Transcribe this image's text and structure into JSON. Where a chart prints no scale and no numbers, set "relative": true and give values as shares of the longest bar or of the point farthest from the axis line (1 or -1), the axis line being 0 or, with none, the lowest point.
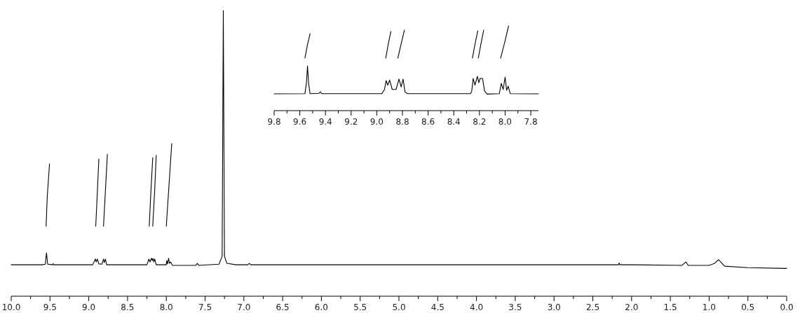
{
  "chart_data": [
    {
      "type": "line",
      "relative": true,
      "tick_labels": "x",
      "xlim": [
        10.0,
        0.0
      ],
      "xticks": [
        {
          "value": 10.0,
          "label": "10.0"
        },
        {
          "value": 9.75,
          "label": null
        },
        9.5,
        {
          "value": 9.25,
          "label": null
        },
        {
          "value": 9.0,
          "label": "9.0"
        },
        {
          "value": 8.75,
          "label": null
        },
        8.5,
        {
          "value": 8.25,
          "label": null
        },
        {
          "value": 8.0,
          "label": "8.0"
        },
        {
          "value": 7.75,
          "label": null
        },
        7.5,
        {
          "value": 7.25,
          "label": null
        },
        {
          "value": 7.0,
          "label": "7.0"
        },
        {
          "value": 6.75,
          "label": null
        },
        6.5,
        {
          "value": 6.25,
          "label": null
        },
        {
          "value": 6.0,
          "label": "6.0"
        },
        {
          "value": 5.75,
          "label": null
        },
        5.5,
        {
          "value": 5.25,
          "label": null
        },
        {
          "value": 5.0,
          "label": "5.0"
        },
        {
          "value": 4.75,
          "label": null
        },
        4.5,
        {
          "value": 4.25,
          "label": null
        },
        {
          "value": 4.0,
          "label": "4.0"
        },
        {
          "value": 3.75,
          "label": null
        },
        3.5,
        {
          "value": 3.25,
          "label": null
        },
        {
          "value": 3.0,
          "label": "3.0"
        },
        {
          "value": 2.75,
          "label": null
        },
        2.5,
        {
          "value": 2.25,
          "label": null
        },
        {
          "value": 2.0,
          "label": "2.0"
        },
        {
          "value": 1.75,
          "label": null
        },
        1.5,
        {
          "value": 1.25,
          "label": null
        },
        {
          "value": 1.0,
          "label": "1.0"
        },
        {
          "value": 0.75,
          "label": null
        },
        0.5,
        {
          "value": 0.25,
          "label": null
        },
        {
          "value": 0.0,
          "label": "0.0"
        }
      ],
      "line_style": "solid",
      "marker": "none",
      "series": [
        {
          "color": "#000000",
          "x": [
            10.0,
            9.6,
            9.56,
            9.545,
            9.53,
            9.47,
            9.46,
            9.45,
            9.0,
            8.95,
            8.915,
            8.905,
            8.89,
            8.87,
            8.83,
            8.81,
            8.8,
            8.785,
            8.77,
            8.25,
            8.225,
            8.21,
            8.19,
            8.18,
            8.17,
            8.16,
            8.15,
            8.13,
            8.0,
            7.995,
            7.985,
            7.97,
            7.96,
            7.945,
            7.92,
            7.62,
            7.6,
            7.58,
            7.32,
            7.28,
            7.265,
            7.25,
            7.22,
            7.1,
            6.95,
            6.93,
            6.91,
            6.0,
            4.0,
            3.0,
            2.17,
            2.16,
            2.15,
            2.0,
            1.35,
            1.3,
            1.27,
            1.0,
            0.93,
            0.88,
            0.85,
            0.8,
            0.5,
            0.0
          ],
          "values": [
            0.11,
            0.11,
            0.112,
            0.152,
            0.112,
            0.11,
            0.114,
            0.11,
            0.11,
            0.11,
            0.13,
            0.12,
            0.13,
            0.113,
            0.112,
            0.13,
            0.118,
            0.13,
            0.11,
            0.11,
            0.13,
            0.12,
            0.133,
            0.125,
            0.132,
            0.12,
            0.13,
            0.11,
            0.11,
            0.125,
            0.113,
            0.133,
            0.115,
            0.12,
            0.108,
            0.108,
            0.115,
            0.108,
            0.112,
            0.14,
            1.0,
            0.14,
            0.115,
            0.11,
            0.11,
            0.115,
            0.11,
            0.11,
            0.11,
            0.11,
            0.11,
            0.116,
            0.11,
            0.11,
            0.108,
            0.12,
            0.108,
            0.108,
            0.115,
            0.128,
            0.12,
            0.105,
            0.1,
            0.097
          ]
        },
        {
          "color": "#000000",
          "x": [
            9.55,
            9.535,
            9.506
          ],
          "values": [
            0.245,
            0.35,
            0.463
          ]
        },
        {
          "color": "#000000",
          "x": [
            8.91,
            8.89,
            8.87
          ],
          "values": [
            0.245,
            0.36,
            0.48
          ]
        },
        {
          "color": "#000000",
          "x": [
            8.81,
            8.785,
            8.76
          ],
          "values": [
            0.245,
            0.37,
            0.497
          ]
        },
        {
          "color": "#000000",
          "x": [
            8.22,
            8.2,
            8.175
          ],
          "values": [
            0.245,
            0.36,
            0.485
          ]
        },
        {
          "color": "#000000",
          "x": [
            8.175,
            8.15,
            8.13
          ],
          "values": [
            0.245,
            0.37,
            0.493
          ]
        },
        {
          "color": "#000000",
          "x": [
            8.0,
            7.965,
            7.93
          ],
          "values": [
            0.245,
            0.39,
            0.534
          ]
        }
      ]
    },
    {
      "type": "line",
      "relative": true,
      "tick_labels": "x",
      "xlim": [
        9.8,
        7.74
      ],
      "xticks": [
        9.8,
        {
          "value": 9.7,
          "label": null
        },
        9.6,
        {
          "value": 9.5,
          "label": null
        },
        9.4,
        {
          "value": 9.3,
          "label": null
        },
        9.2,
        {
          "value": 9.1,
          "label": null
        },
        {
          "value": 9.0,
          "label": "9.0"
        },
        {
          "value": 8.9,
          "label": null
        },
        8.8,
        {
          "value": 8.7,
          "label": null
        },
        8.6,
        {
          "value": 8.5,
          "label": null
        },
        8.4,
        {
          "value": 8.3,
          "label": null
        },
        8.2,
        {
          "value": 8.1,
          "label": null
        },
        {
          "value": 8.0,
          "label": "8.0"
        },
        {
          "value": 7.9,
          "label": null
        },
        7.8
      ],
      "line_style": "solid",
      "marker": "none",
      "series": [
        {
          "color": "#000000",
          "x": [
            9.8,
            9.56,
            9.548,
            9.54,
            9.532,
            9.52,
            9.45,
            9.44,
            9.43,
            8.96,
            8.94,
            8.927,
            8.915,
            8.9,
            8.88,
            8.85,
            8.827,
            8.81,
            8.795,
            8.78,
            8.76,
            8.27,
            8.26,
            8.249,
            8.235,
            8.216,
            8.205,
            8.195,
            8.176,
            8.16,
            8.14,
            8.045,
            8.03,
            8.015,
            8.0,
            7.988,
            7.976,
            7.96,
            7.74
          ],
          "values": [
            0.198,
            0.2,
            0.33,
            0.529,
            0.33,
            0.2,
            0.205,
            0.223,
            0.2,
            0.2,
            0.25,
            0.355,
            0.3,
            0.36,
            0.25,
            0.25,
            0.372,
            0.28,
            0.372,
            0.22,
            0.2,
            0.2,
            0.23,
            0.38,
            0.3,
            0.405,
            0.33,
            0.38,
            0.38,
            0.23,
            0.195,
            0.2,
            0.322,
            0.25,
            0.397,
            0.24,
            0.289,
            0.2,
            0.198
          ]
        },
        {
          "color": "#000000",
          "x": [
            9.56,
            9.54,
            9.52
          ],
          "values": [
            0.62,
            0.78,
            0.909
          ]
        },
        {
          "color": "#000000",
          "x": [
            8.93,
            8.91,
            8.89
          ],
          "values": [
            0.62,
            0.79,
            0.934
          ]
        },
        {
          "color": "#000000",
          "x": [
            8.836,
            8.81,
            8.785
          ],
          "values": [
            0.62,
            0.79,
            0.95
          ]
        },
        {
          "color": "#000000",
          "x": [
            8.255,
            8.234,
            8.213
          ],
          "values": [
            0.62,
            0.79,
            0.942
          ]
        },
        {
          "color": "#000000",
          "x": [
            8.209,
            8.188,
            8.167
          ],
          "values": [
            0.62,
            0.79,
            0.95
          ]
        },
        {
          "color": "#000000",
          "x": [
            8.035,
            8.004,
            7.973
          ],
          "values": [
            0.62,
            0.8,
            1.0
          ]
        }
      ]
    }
  ]
}
